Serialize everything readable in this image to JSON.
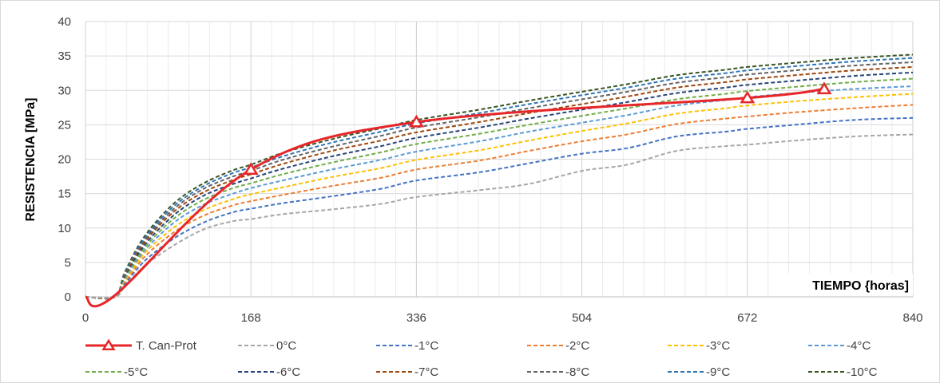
{
  "chart_data": {
    "type": "line",
    "ylabel": "RESISTENCIA [MPa]",
    "xlabel": "TIEMPO {horas]",
    "xlim": [
      0,
      840
    ],
    "ylim": [
      0,
      40
    ],
    "x_ticks": [
      0,
      168,
      336,
      504,
      672,
      840
    ],
    "y_ticks": [
      0,
      5,
      10,
      15,
      20,
      25,
      30,
      35,
      40
    ],
    "grid": true,
    "legend_position": "bottom",
    "series": [
      {
        "name": "T. Can-Prot",
        "color": "#e8262a",
        "style": "solid",
        "marker": "triangle",
        "x": [
          0,
          28,
          168,
          336,
          672,
          750
        ],
        "y": [
          0,
          0,
          18.5,
          25.4,
          28.9,
          30.2
        ]
      },
      {
        "name": "0°C",
        "color": "#a6a6a6",
        "style": "dashed",
        "x": [
          0,
          30,
          40,
          60,
          90,
          120,
          150,
          168,
          200,
          250,
          300,
          336,
          400,
          450,
          504,
          550,
          600,
          650,
          672,
          720,
          780,
          840
        ],
        "y": [
          0,
          0,
          1.5,
          4.5,
          7.5,
          9.8,
          11.0,
          11.3,
          12.0,
          12.7,
          13.5,
          14.5,
          15.5,
          16.4,
          18.3,
          19.2,
          21.2,
          21.9,
          22.1,
          22.7,
          23.3,
          23.6
        ]
      },
      {
        "name": "-1°C",
        "color": "#4472c4",
        "style": "dashed",
        "x": [
          0,
          30,
          40,
          60,
          90,
          120,
          150,
          168,
          200,
          250,
          300,
          336,
          400,
          450,
          504,
          550,
          600,
          650,
          672,
          720,
          780,
          840
        ],
        "y": [
          0,
          0,
          1.8,
          5.2,
          8.5,
          10.8,
          12.3,
          12.8,
          13.6,
          14.6,
          15.7,
          16.9,
          18.1,
          19.4,
          20.8,
          21.6,
          23.3,
          24.0,
          24.4,
          25.0,
          25.7,
          26.0
        ]
      },
      {
        "name": "-2°C",
        "color": "#ed7d31",
        "style": "dashed",
        "x": [
          0,
          30,
          40,
          60,
          90,
          120,
          150,
          168,
          200,
          250,
          300,
          336,
          400,
          450,
          504,
          550,
          600,
          650,
          672,
          720,
          780,
          840
        ],
        "y": [
          0,
          0,
          2.0,
          5.8,
          9.4,
          11.8,
          13.3,
          13.9,
          14.8,
          16.1,
          17.3,
          18.5,
          19.8,
          21.2,
          22.6,
          23.6,
          25.1,
          25.9,
          26.2,
          26.8,
          27.4,
          27.9
        ]
      },
      {
        "name": "-3°C",
        "color": "#ffc000",
        "style": "dashed",
        "x": [
          0,
          30,
          40,
          60,
          90,
          120,
          150,
          168,
          200,
          250,
          300,
          336,
          400,
          450,
          504,
          550,
          600,
          650,
          672,
          720,
          780,
          840
        ],
        "y": [
          0,
          0,
          2.2,
          6.3,
          10.1,
          12.6,
          14.2,
          14.9,
          15.9,
          17.4,
          18.7,
          19.9,
          21.3,
          22.7,
          24.1,
          25.2,
          26.6,
          27.4,
          27.8,
          28.4,
          29.0,
          29.5
        ]
      },
      {
        "name": "-4°C",
        "color": "#5b9bd5",
        "style": "dashed",
        "x": [
          0,
          30,
          40,
          60,
          90,
          120,
          150,
          168,
          200,
          250,
          300,
          336,
          400,
          450,
          504,
          550,
          600,
          650,
          672,
          720,
          780,
          840
        ],
        "y": [
          0,
          0,
          2.4,
          6.7,
          10.8,
          13.4,
          15.0,
          15.8,
          16.9,
          18.5,
          19.9,
          21.1,
          22.6,
          24.0,
          25.3,
          26.4,
          27.8,
          28.6,
          29.0,
          29.6,
          30.2,
          30.6
        ]
      },
      {
        "name": "-5°C",
        "color": "#70ad47",
        "style": "dashed",
        "x": [
          0,
          30,
          40,
          60,
          90,
          120,
          150,
          168,
          200,
          250,
          300,
          336,
          400,
          450,
          504,
          550,
          600,
          650,
          672,
          720,
          780,
          840
        ],
        "y": [
          0,
          0,
          2.6,
          7.1,
          11.4,
          14.1,
          15.8,
          16.5,
          17.8,
          19.5,
          21.0,
          22.2,
          23.7,
          25.0,
          26.3,
          27.4,
          28.7,
          29.5,
          29.9,
          30.5,
          31.2,
          31.7
        ]
      },
      {
        "name": "-6°C",
        "color": "#264478",
        "style": "dashed",
        "x": [
          0,
          30,
          40,
          60,
          90,
          120,
          150,
          168,
          200,
          250,
          300,
          336,
          400,
          450,
          504,
          550,
          600,
          650,
          672,
          720,
          780,
          840
        ],
        "y": [
          0,
          0,
          2.8,
          7.5,
          11.9,
          14.7,
          16.4,
          17.2,
          18.6,
          20.4,
          21.9,
          23.1,
          24.6,
          25.9,
          27.2,
          28.3,
          29.6,
          30.4,
          30.8,
          31.4,
          32.1,
          32.6
        ]
      },
      {
        "name": "-7°C",
        "color": "#9e480e",
        "style": "dashed",
        "x": [
          0,
          30,
          40,
          60,
          90,
          120,
          150,
          168,
          200,
          250,
          300,
          336,
          400,
          450,
          504,
          550,
          600,
          650,
          672,
          720,
          780,
          840
        ],
        "y": [
          0,
          0,
          3.0,
          7.9,
          12.4,
          15.2,
          17.0,
          17.8,
          19.3,
          21.2,
          22.7,
          23.9,
          25.4,
          26.7,
          28.0,
          29.1,
          30.4,
          31.2,
          31.6,
          32.2,
          32.9,
          33.4
        ]
      },
      {
        "name": "-8°C",
        "color": "#636363",
        "style": "dashed",
        "x": [
          0,
          30,
          40,
          60,
          90,
          120,
          150,
          168,
          200,
          250,
          300,
          336,
          400,
          450,
          504,
          550,
          600,
          650,
          672,
          720,
          780,
          840
        ],
        "y": [
          0,
          0,
          3.2,
          8.2,
          12.8,
          15.7,
          17.5,
          18.3,
          19.9,
          21.8,
          23.4,
          24.6,
          26.1,
          27.4,
          28.7,
          29.8,
          31.1,
          31.9,
          32.3,
          32.9,
          33.6,
          34.1
        ]
      },
      {
        "name": "-9°C",
        "color": "#2e75b6",
        "style": "dashed",
        "x": [
          0,
          30,
          40,
          60,
          90,
          120,
          150,
          168,
          200,
          250,
          300,
          336,
          400,
          450,
          504,
          550,
          600,
          650,
          672,
          720,
          780,
          840
        ],
        "y": [
          0,
          0,
          3.4,
          8.5,
          13.2,
          16.1,
          18.0,
          18.8,
          20.4,
          22.4,
          24.0,
          25.2,
          26.7,
          28.0,
          29.3,
          30.4,
          31.7,
          32.5,
          32.9,
          33.5,
          34.2,
          34.7
        ]
      },
      {
        "name": "-10°C",
        "color": "#375623",
        "style": "dashed",
        "x": [
          0,
          30,
          40,
          60,
          90,
          120,
          150,
          168,
          200,
          250,
          300,
          336,
          400,
          450,
          504,
          550,
          600,
          650,
          672,
          720,
          780,
          840
        ],
        "y": [
          0,
          0,
          3.6,
          8.8,
          13.6,
          16.5,
          18.4,
          19.2,
          20.9,
          22.9,
          24.5,
          25.7,
          27.2,
          28.5,
          29.8,
          30.9,
          32.2,
          33.0,
          33.4,
          34.0,
          34.7,
          35.2
        ]
      }
    ]
  }
}
